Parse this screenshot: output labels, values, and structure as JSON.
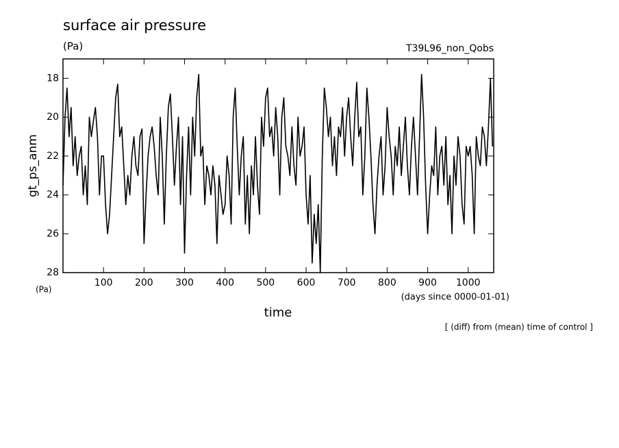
{
  "chart_data": {
    "type": "line",
    "title": "surface air pressure",
    "units": "(Pa)",
    "run_label": "T39L96_non_Qobs",
    "y_label": "gt_ps_anm",
    "y_units": "(Pa)",
    "x_label": "time",
    "x_units": "(days since 0000-01-01)",
    "note": "[ (diff) from (mean) time of control ]",
    "xlim": [
      0,
      1063
    ],
    "xticks": [
      100,
      200,
      300,
      400,
      500,
      600,
      700,
      800,
      900,
      1000
    ],
    "ylim": [
      28,
      17
    ],
    "yticks": [
      18,
      20,
      22,
      24,
      26,
      28
    ],
    "x": [
      0,
      5,
      10,
      15,
      20,
      25,
      30,
      35,
      40,
      45,
      50,
      55,
      60,
      65,
      70,
      75,
      80,
      85,
      90,
      95,
      100,
      105,
      110,
      115,
      120,
      125,
      130,
      135,
      140,
      145,
      150,
      155,
      160,
      165,
      170,
      175,
      180,
      185,
      190,
      195,
      200,
      205,
      210,
      215,
      220,
      225,
      230,
      235,
      240,
      245,
      250,
      255,
      260,
      265,
      270,
      275,
      280,
      285,
      290,
      295,
      300,
      305,
      310,
      315,
      320,
      325,
      330,
      335,
      340,
      345,
      350,
      355,
      360,
      365,
      370,
      375,
      380,
      385,
      390,
      395,
      400,
      405,
      410,
      415,
      420,
      425,
      430,
      435,
      440,
      445,
      450,
      455,
      460,
      465,
      470,
      475,
      480,
      485,
      490,
      495,
      500,
      505,
      510,
      515,
      520,
      525,
      530,
      535,
      540,
      545,
      550,
      555,
      560,
      565,
      570,
      575,
      580,
      585,
      590,
      595,
      600,
      605,
      610,
      615,
      620,
      625,
      630,
      635,
      640,
      645,
      650,
      655,
      660,
      665,
      670,
      675,
      680,
      685,
      690,
      695,
      700,
      705,
      710,
      715,
      720,
      725,
      730,
      735,
      740,
      745,
      750,
      755,
      760,
      765,
      770,
      775,
      780,
      785,
      790,
      795,
      800,
      805,
      810,
      815,
      820,
      825,
      830,
      835,
      840,
      845,
      850,
      855,
      860,
      865,
      870,
      875,
      880,
      885,
      890,
      895,
      900,
      905,
      910,
      915,
      920,
      925,
      930,
      935,
      940,
      945,
      950,
      955,
      960,
      965,
      970,
      975,
      980,
      985,
      990,
      995,
      1000,
      1005,
      1010,
      1015,
      1020,
      1025,
      1030,
      1035,
      1040,
      1045,
      1050,
      1055,
      1060
    ],
    "series": [
      {
        "color": "#000000",
        "values": [
          23.5,
          20,
          18.5,
          21,
          19.5,
          22.5,
          21,
          23,
          22,
          21.5,
          24,
          22.5,
          24.5,
          20,
          21,
          20.2,
          19.5,
          21,
          24,
          22,
          22,
          24.5,
          26,
          25,
          23,
          21,
          19,
          18.3,
          21,
          20.5,
          22.5,
          24.5,
          23,
          24,
          22,
          21,
          22.5,
          23,
          21,
          20.6,
          26.5,
          24,
          22,
          21,
          20.5,
          21.5,
          23,
          24,
          20,
          22,
          25.5,
          22,
          19.5,
          18.8,
          21,
          23.5,
          21.5,
          20,
          24.5,
          21,
          27,
          23,
          20.5,
          24,
          20,
          22,
          19,
          17.8,
          22,
          21.5,
          24.5,
          22.5,
          23,
          24,
          22.5,
          23.5,
          26.5,
          23,
          24,
          25,
          24.5,
          22,
          23,
          25.5,
          20,
          18.5,
          21.5,
          24,
          22,
          21,
          25.5,
          23,
          26,
          22.5,
          24,
          21,
          23.5,
          25,
          20,
          21.5,
          19,
          18.5,
          21,
          20.5,
          22,
          19.5,
          21,
          24,
          20,
          19,
          21.5,
          22,
          23,
          20.5,
          22.5,
          23.5,
          20,
          22,
          21.5,
          20.5,
          24,
          25.5,
          23,
          27.5,
          25,
          26.5,
          24.5,
          28,
          22,
          18.5,
          19.5,
          21,
          20,
          22.5,
          21,
          23,
          20.5,
          21,
          19.5,
          22,
          20,
          19,
          21,
          22.5,
          20,
          18.2,
          21,
          20.5,
          24,
          22,
          18.5,
          20,
          22,
          24.5,
          26,
          23.5,
          22,
          21,
          24,
          22.5,
          19.5,
          21,
          22,
          24,
          21.5,
          22.5,
          20.5,
          23,
          21.5,
          20,
          22.5,
          24,
          21.5,
          20,
          22,
          24,
          21,
          17.8,
          20,
          23.5,
          26,
          24,
          22.5,
          23,
          20.5,
          24,
          22,
          21.5,
          23.5,
          21,
          24.5,
          23,
          26,
          22,
          23.5,
          21,
          22,
          24.5,
          25.5,
          21.5,
          22,
          21.5,
          23,
          26,
          21,
          22,
          22.5,
          20.5,
          21,
          22.5,
          20.5,
          18,
          21.5
        ]
      }
    ]
  }
}
